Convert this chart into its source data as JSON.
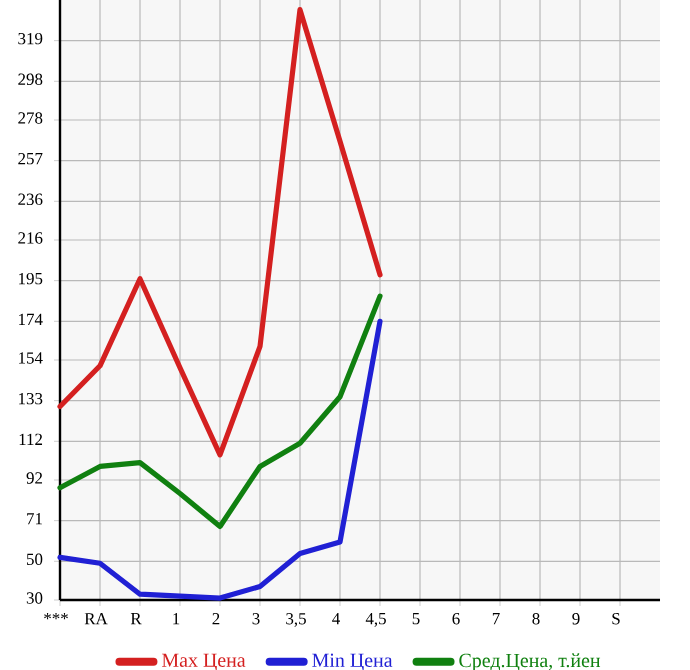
{
  "chart_data": {
    "type": "line",
    "categories": [
      "***",
      "RA",
      "R",
      "1",
      "2",
      "3",
      "3,5",
      "4",
      "4,5",
      "5",
      "6",
      "7",
      "8",
      "9",
      "S"
    ],
    "series": [
      {
        "name": "Max Цена",
        "color": "#d42020",
        "values": [
          130,
          151,
          196,
          150,
          105,
          161,
          335,
          267,
          198,
          null,
          null,
          null,
          null,
          null,
          null
        ]
      },
      {
        "name": "Min Цена",
        "color": "#2020d4",
        "values": [
          52,
          49,
          33,
          32,
          31,
          37,
          54,
          60,
          174,
          null,
          null,
          null,
          null,
          null,
          null
        ]
      },
      {
        "name": "Сред.Цена, т.йен",
        "color": "#108010",
        "values": [
          88,
          99,
          101,
          85,
          68,
          99,
          111,
          135,
          187,
          null,
          null,
          null,
          null,
          null,
          null
        ]
      }
    ],
    "ylim": [
      30,
      340
    ],
    "yticks": [
      30,
      50,
      71,
      92,
      112,
      133,
      154,
      174,
      195,
      216,
      236,
      257,
      278,
      298,
      319
    ],
    "grid": true,
    "legend": "bottom",
    "marker": "none",
    "line_style": "solid"
  }
}
